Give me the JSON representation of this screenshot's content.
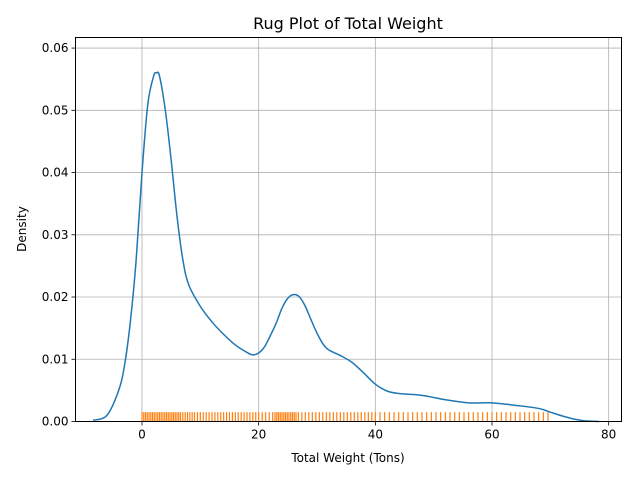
{
  "chart_data": {
    "type": "line",
    "title": "Rug Plot of Total Weight",
    "xlabel": "Total Weight (Tons)",
    "ylabel": "Density",
    "xlim": [
      -11.4,
      82.2
    ],
    "ylim": [
      0,
      0.0617
    ],
    "xticks": [
      0,
      20,
      40,
      60,
      80
    ],
    "xtick_labels": [
      "0",
      "20",
      "40",
      "60",
      "80"
    ],
    "yticks": [
      0,
      0.01,
      0.02,
      0.03,
      0.04,
      0.05,
      0.06
    ],
    "ytick_labels": [
      "0.00",
      "0.01",
      "0.02",
      "0.03",
      "0.04",
      "0.05",
      "0.06"
    ],
    "grid": true,
    "colors": {
      "kde": "#1f77b4",
      "rug": "#ff7f0e",
      "grid": "#b0b0b0"
    },
    "series": [
      {
        "kind": "kde",
        "x": [
          -8.4,
          -6,
          -4,
          -3,
          -2,
          -1,
          0,
          1,
          2,
          2.5,
          3,
          4,
          5,
          6,
          7,
          8,
          10,
          12,
          14,
          16,
          18,
          19,
          20,
          21,
          22,
          23,
          24,
          25,
          26,
          27,
          28,
          29,
          30,
          31,
          32,
          34,
          36,
          38,
          40,
          42,
          44,
          48,
          52,
          56,
          60,
          64,
          68,
          70,
          72,
          74,
          76,
          78.3
        ],
        "y": [
          0.0002,
          0.001,
          0.005,
          0.009,
          0.016,
          0.026,
          0.04,
          0.051,
          0.0555,
          0.056,
          0.0555,
          0.05,
          0.042,
          0.033,
          0.026,
          0.022,
          0.0185,
          0.016,
          0.014,
          0.0123,
          0.0111,
          0.0107,
          0.011,
          0.012,
          0.0138,
          0.0158,
          0.0182,
          0.0198,
          0.0204,
          0.02,
          0.0185,
          0.0163,
          0.0142,
          0.0125,
          0.0115,
          0.0106,
          0.0095,
          0.0078,
          0.006,
          0.0049,
          0.0045,
          0.0042,
          0.0035,
          0.003,
          0.003,
          0.0026,
          0.0021,
          0.0015,
          0.0009,
          0.0004,
          0.0001,
          0.0
        ]
      },
      {
        "kind": "rug",
        "height": 0.0015,
        "x": [
          0,
          0.3,
          0.6,
          0.9,
          1.2,
          1.5,
          1.8,
          2.1,
          2.4,
          2.7,
          3,
          3.3,
          3.6,
          3.9,
          4.2,
          4.5,
          4.8,
          5.1,
          5.4,
          5.7,
          6,
          6.3,
          6.6,
          7,
          7.4,
          7.8,
          8.2,
          8.6,
          9,
          9.5,
          10,
          10.5,
          11,
          11.5,
          12,
          12.5,
          13,
          13.5,
          14,
          14.5,
          15,
          15.5,
          16,
          16.5,
          17,
          17.5,
          18,
          18.5,
          19,
          19.5,
          20,
          20.6,
          21.2,
          21.8,
          22.4,
          22.8,
          23.1,
          23.4,
          23.7,
          24,
          24.3,
          24.6,
          24.9,
          25.2,
          25.5,
          25.8,
          26.1,
          26.4,
          26.8,
          27.4,
          28,
          28.6,
          29.2,
          29.8,
          30.4,
          31,
          31.6,
          32.2,
          32.8,
          33.4,
          34,
          34.6,
          35.2,
          35.8,
          36.4,
          37,
          37.6,
          38.2,
          38.8,
          39.4,
          40,
          40.8,
          41.6,
          42.4,
          43.2,
          44,
          44.8,
          45.6,
          46.4,
          47.2,
          48,
          48.8,
          49.6,
          50.4,
          51.2,
          52,
          52.8,
          53.6,
          54.4,
          55.2,
          56,
          56.8,
          57.6,
          58.4,
          59.2,
          60,
          60.8,
          61.6,
          62.4,
          63.2,
          64,
          64.8,
          65.6,
          66.4,
          67.2,
          68,
          68.8,
          69.6
        ]
      }
    ]
  }
}
